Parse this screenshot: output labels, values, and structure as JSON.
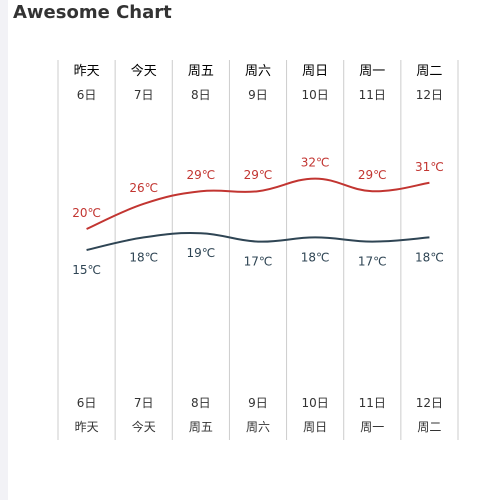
{
  "title": "Awesome Chart",
  "colors": {
    "high": "#c23531",
    "low": "#2f4554",
    "grid": "#cccccc",
    "text": "#333333"
  },
  "chart_data": {
    "type": "line",
    "title": "Awesome Chart",
    "categories": [
      "昨天",
      "今天",
      "周五",
      "周六",
      "周日",
      "周一",
      "周二"
    ],
    "dates": [
      "6日",
      "7日",
      "8日",
      "9日",
      "10日",
      "11日",
      "12日"
    ],
    "unit": "℃",
    "ylim": [
      0,
      40
    ],
    "series": [
      {
        "values": [
          20,
          26,
          29,
          29,
          32,
          29,
          31
        ],
        "color": "#c23531"
      },
      {
        "values": [
          15,
          18,
          19,
          17,
          18,
          17,
          18
        ],
        "color": "#2f4554"
      }
    ]
  }
}
